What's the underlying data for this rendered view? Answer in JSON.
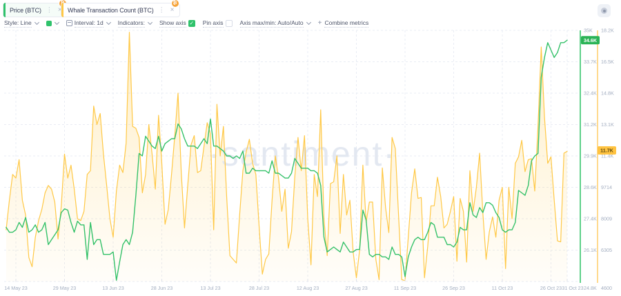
{
  "header": {
    "tabs": [
      {
        "label": "Price (BTC)",
        "accent_color": "#2fc26b",
        "badge_icon": "bitcoin"
      },
      {
        "label": "Whale Transaction Count (BTC)",
        "accent_color": "#ffc845",
        "badge_icon": "bitcoin"
      }
    ]
  },
  "toolbar": {
    "style_label": "Style: Line",
    "swatch_color": "#2fc26b",
    "interval_label": "Interval: 1d",
    "indicators_label": "Indicators:",
    "show_axis_label": "Show axis",
    "show_axis_checked": true,
    "pin_axis_label": "Pin axis",
    "pin_axis_checked": false,
    "axis_maxmin_label": "Axis max/min: Auto/Auto",
    "combine_metrics_label": "Combine metrics"
  },
  "watermark": "·santiment·",
  "chart_data": {
    "type": "line",
    "x_tick_labels": [
      "14 May 23",
      "29 May 23",
      "13 Jun 23",
      "28 Jun 23",
      "13 Jul 23",
      "28 Jul 23",
      "12 Aug 23",
      "27 Aug 23",
      "11 Sep 23",
      "26 Sep 23",
      "11 Oct 23",
      "26 Oct 23",
      "31 Oct 23"
    ],
    "interval": "1d",
    "grid": "dashed",
    "price_axis": {
      "side": "right",
      "color": "#5ed189",
      "min": 24800,
      "max": 35000,
      "labels": [
        "35K",
        "33.7K",
        "32.4K",
        "31.2K",
        "29.9K",
        "28.6K",
        "27.4K",
        "26.1K",
        "24.8K"
      ],
      "badge_value": "34.6K",
      "badge_bg": "#2bb356",
      "badge_fg": "#ffffff"
    },
    "whale_axis": {
      "side": "right",
      "color": "#ffda8f",
      "min": 4600,
      "max": 18200,
      "labels": [
        "18.2K",
        "16.5K",
        "14.8K",
        "13.1K",
        "11.4K",
        "9714",
        "8009",
        "6305",
        "4600"
      ],
      "badge_value": "11.7K",
      "badge_bg": "#ffc341",
      "badge_fg": "#5f4a10"
    },
    "series": [
      {
        "name": "Price (BTC)",
        "color": "#34c169",
        "axis": "price",
        "unit": "K USD",
        "style": "line",
        "values": [
          27.0,
          26.8,
          26.8,
          26.9,
          27.2,
          27.0,
          27.4,
          26.8,
          26.9,
          27.1,
          26.8,
          26.9,
          27.2,
          26.3,
          26.5,
          26.7,
          26.9,
          27.6,
          27.75,
          27.7,
          27.2,
          26.8,
          27.25,
          27.1,
          27.1,
          25.7,
          27.2,
          26.3,
          26.5,
          26.5,
          25.9,
          25.9,
          25.9,
          26.0,
          24.85,
          25.6,
          26.3,
          26.5,
          26.3,
          26.8,
          28.3,
          30.0,
          29.9,
          30.7,
          30.5,
          30.3,
          30.2,
          30.7,
          30.1,
          30.4,
          30.5,
          30.6,
          30.6,
          31.2,
          31.0,
          30.6,
          30.3,
          30.3,
          30.3,
          30.2,
          30.4,
          30.6,
          30.4,
          31.4,
          30.3,
          30.3,
          30.2,
          30.1,
          29.9,
          29.9,
          29.8,
          29.9,
          29.8,
          30.1,
          29.2,
          29.2,
          29.4,
          29.3,
          29.3,
          29.3,
          29.3,
          29.2,
          29.7,
          29.2,
          29.2,
          29.1,
          29.0,
          29.0,
          29.2,
          29.8,
          29.6,
          29.4,
          29.4,
          29.4,
          29.3,
          29.3,
          29.2,
          28.7,
          26.6,
          26.0,
          26.1,
          26.2,
          26.1,
          26.0,
          26.4,
          26.2,
          26.0,
          26.0,
          26.1,
          26.1,
          27.7,
          27.3,
          25.9,
          25.8,
          25.9,
          25.9,
          25.8,
          25.8,
          25.7,
          26.2,
          25.9,
          25.9,
          25.8,
          25.0,
          25.8,
          26.2,
          26.5,
          26.6,
          26.5,
          26.5,
          26.8,
          27.2,
          27.1,
          26.6,
          26.6,
          26.6,
          26.3,
          26.3,
          26.2,
          26.4,
          27.0,
          26.9,
          26.9,
          28.0,
          27.5,
          27.4,
          27.8,
          27.6,
          28.0,
          28.0,
          27.9,
          27.6,
          27.4,
          26.9,
          26.8,
          26.9,
          26.9,
          27.2,
          28.5,
          28.4,
          28.3,
          28.7,
          29.7,
          29.9,
          30.0,
          33.1,
          33.9,
          34.5,
          34.2,
          33.9,
          34.1,
          34.5,
          34.5,
          34.6
        ]
      },
      {
        "name": "Whale Transaction Count (BTC)",
        "color": "#ffc845",
        "axis": "whale",
        "unit": "transactions",
        "style": "area",
        "values": [
          7400,
          9000,
          10400,
          10200,
          11200,
          9000,
          8200,
          5900,
          5400,
          7000,
          7900,
          8500,
          9400,
          9800,
          9600,
          8900,
          6900,
          8700,
          11500,
          10200,
          10900,
          9600,
          8000,
          7900,
          8400,
          10400,
          10600,
          14100,
          13100,
          13700,
          11500,
          9800,
          8000,
          7000,
          9500,
          10900,
          10500,
          12100,
          18100,
          13000,
          12900,
          12400,
          9400,
          10400,
          13100,
          11500,
          9600,
          13600,
          11000,
          7700,
          8500,
          10400,
          12500,
          14800,
          10500,
          7500,
          9800,
          12000,
          12500,
          10500,
          10600,
          11900,
          13200,
          12600,
          7400,
          14200,
          11400,
          13000,
          9200,
          6000,
          5800,
          5600,
          8200,
          10600,
          11600,
          12300,
          11000,
          10400,
          7600,
          5000,
          5800,
          6100,
          9000,
          11400,
          10200,
          8400,
          9600,
          6400,
          7300,
          10250,
          12400,
          10600,
          12500,
          8000,
          5500,
          10400,
          9200,
          13900,
          8000,
          6000,
          9900,
          10000,
          11400,
          7200,
          10400,
          8200,
          9000,
          6200,
          4800,
          6300,
          10900,
          7800,
          8900,
          8900,
          5800,
          4700,
          10750,
          8600,
          7250,
          12400,
          11800,
          8200,
          4700,
          4650,
          7000,
          9400,
          10700,
          9100,
          9150,
          4800,
          6500,
          8700,
          8700,
          10250,
          9200,
          7500,
          7700,
          8400,
          9200,
          5700,
          9100,
          8400,
          5650,
          10600,
          8400,
          9700,
          11550,
          8300,
          5800,
          7300,
          8100,
          7000,
          9000,
          9700,
          5300,
          9700,
          8000,
          11000,
          11350,
          12250,
          10550,
          11200,
          11250,
          9500,
          13000,
          17300,
          13500,
          11000,
          11350,
          9000,
          6800,
          6750,
          11550,
          11650
        ]
      }
    ]
  }
}
